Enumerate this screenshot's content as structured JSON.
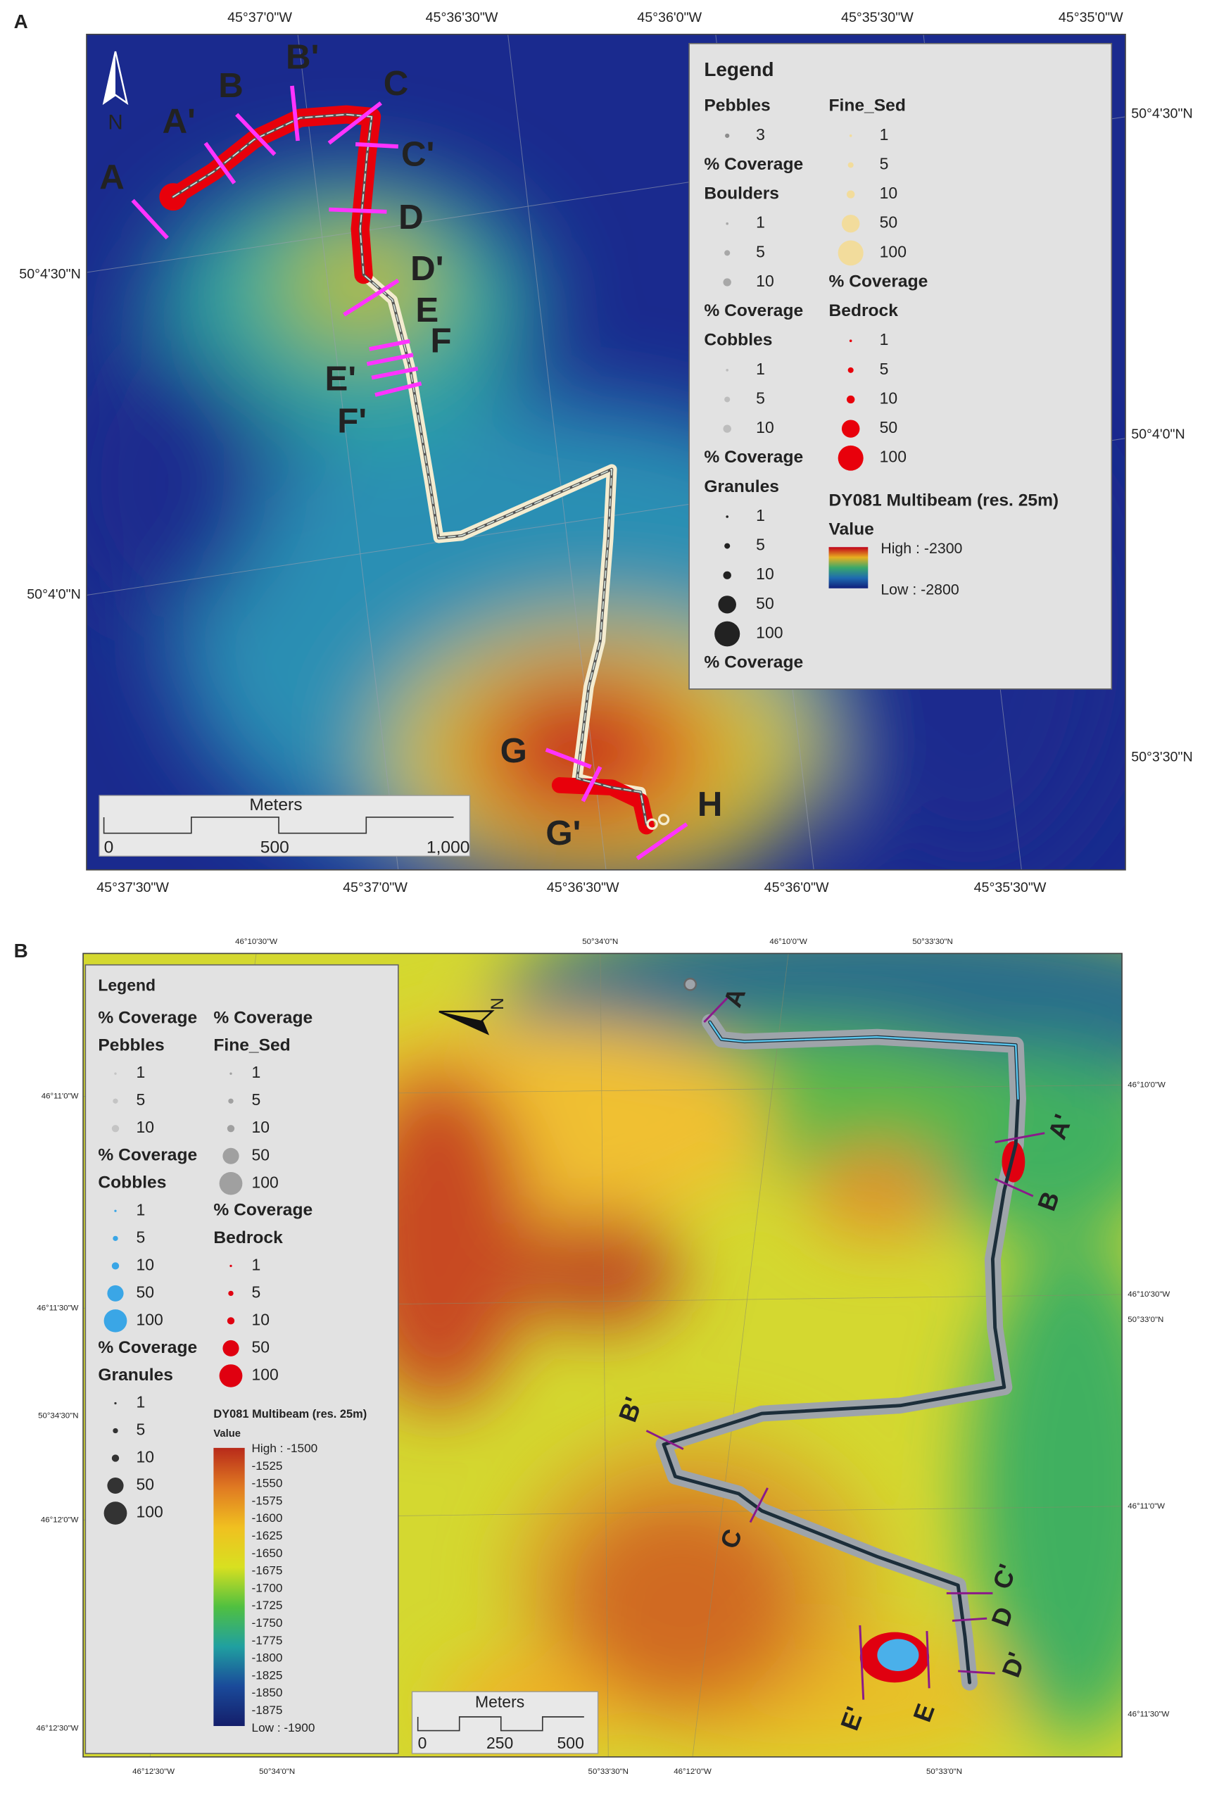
{
  "panels": [
    {
      "label": "A",
      "north": "N",
      "top_labels": [
        "45°37'0\"W",
        "45°36'30\"W",
        "45°36'0\"W",
        "45°35'30\"W",
        "45°35'0\"W"
      ],
      "bottom_labels": [
        "45°37'30\"W",
        "45°37'0\"W",
        "45°36'30\"W",
        "45°36'0\"W",
        "45°35'30\"W"
      ],
      "left_labels": [
        "50°4'30\"N",
        "50°4'0\"N"
      ],
      "right_labels": [
        "50°4'30\"N",
        "50°4'0\"N",
        "50°3'30\"N"
      ],
      "transects": [
        "A",
        "A'",
        "B",
        "B'",
        "C",
        "C'",
        "D",
        "D'",
        "E",
        "F",
        "E'",
        "F'",
        "G",
        "G'",
        "H"
      ],
      "scale_bar": {
        "title": "Meters",
        "labels": [
          "0",
          "500",
          "1,000"
        ]
      },
      "legend": {
        "title": "Legend",
        "columns": [
          [
            {
              "title": "Pebbles",
              "items": [
                "3"
              ],
              "footer": "% Coverage",
              "color": "#8c8c8c"
            },
            {
              "title": "Boulders",
              "items": [
                "1",
                "5",
                "10"
              ],
              "footer": "% Coverage",
              "color": "#a8a8a8"
            },
            {
              "title": "Cobbles",
              "items": [
                "1",
                "5",
                "10"
              ],
              "footer": "% Coverage",
              "color": "#bdbdbd"
            },
            {
              "title": "Granules",
              "items": [
                "1",
                "5",
                "10",
                "50",
                "100"
              ],
              "footer": "% Coverage",
              "color": "#222222"
            }
          ],
          [
            {
              "title": "Fine_Sed",
              "items": [
                "1",
                "5",
                "10",
                "50",
                "100"
              ],
              "footer": "% Coverage",
              "color": "#f2dc9c"
            },
            {
              "title": "Bedrock",
              "items": [
                "1",
                "5",
                "10",
                "50",
                "100"
              ],
              "color": "#e8000b"
            }
          ]
        ],
        "colorbar": {
          "title": "DY081 Multibeam (res. 25m)",
          "subtitle": "Value",
          "labels": [
            "High : -2300",
            "Low : -2800"
          ],
          "colors": [
            "#c0001a",
            "#e8b020",
            "#3aa86a",
            "#1e6ab0",
            "#10207a"
          ]
        }
      }
    },
    {
      "label": "B",
      "north": "N",
      "top_labels": [
        "46°10'30\"W",
        "50°34'0\"N",
        "46°10'0\"W",
        "50°33'30\"N"
      ],
      "bottom_labels": [
        "46°12'30\"W",
        "50°34'0\"N",
        "50°33'30\"N",
        "46°12'0\"W",
        "50°33'0\"N"
      ],
      "left_labels": [
        "46°11'0\"W",
        "46°11'30\"W",
        "50°34'30\"N",
        "46°12'0\"W",
        "46°12'30\"W"
      ],
      "right_labels": [
        "46°10'0\"W",
        "46°10'30\"W",
        "50°33'0\"N",
        "46°11'0\"W",
        "46°11'30\"W"
      ],
      "transects": [
        "A",
        "A'",
        "B",
        "B'",
        "C",
        "C'",
        "D",
        "D'",
        "E",
        "E'"
      ],
      "scale_bar": {
        "title": "Meters",
        "labels": [
          "0",
          "250",
          "500"
        ]
      },
      "legend": {
        "title": "Legend",
        "columns": [
          [
            {
              "header": "% Coverage",
              "title": "Pebbles",
              "items": [
                "1",
                "5",
                "10"
              ],
              "color": "#c4c4c4"
            },
            {
              "header": "% Coverage",
              "title": "Cobbles",
              "items": [
                "1",
                "5",
                "10",
                "50",
                "100"
              ],
              "color": "#3aa6e6"
            },
            {
              "header": "% Coverage",
              "title": "Granules",
              "items": [
                "1",
                "5",
                "10",
                "50",
                "100"
              ],
              "color": "#333333"
            }
          ],
          [
            {
              "header": "% Coverage",
              "title": "Fine_Sed",
              "items": [
                "1",
                "5",
                "10",
                "50",
                "100"
              ],
              "color": "#a0a0a0"
            },
            {
              "header": "% Coverage",
              "title": "Bedrock",
              "items": [
                "1",
                "5",
                "10",
                "50",
                "100"
              ],
              "color": "#e00010"
            }
          ]
        ],
        "colorbar": {
          "title": "DY081 Multibeam (res. 25m)",
          "subtitle": "Value",
          "labels": [
            "High : -1500",
            "-1525",
            "-1550",
            "-1575",
            "-1600",
            "-1625",
            "-1650",
            "-1675",
            "-1700",
            "-1725",
            "-1750",
            "-1775",
            "-1800",
            "-1825",
            "-1850",
            "-1875",
            "Low : -1900"
          ],
          "colors": [
            "#b82a1a",
            "#e07a22",
            "#f0c020",
            "#d8e020",
            "#50c040",
            "#20a0a0",
            "#1a4a9a",
            "#141e6a"
          ]
        }
      }
    }
  ]
}
